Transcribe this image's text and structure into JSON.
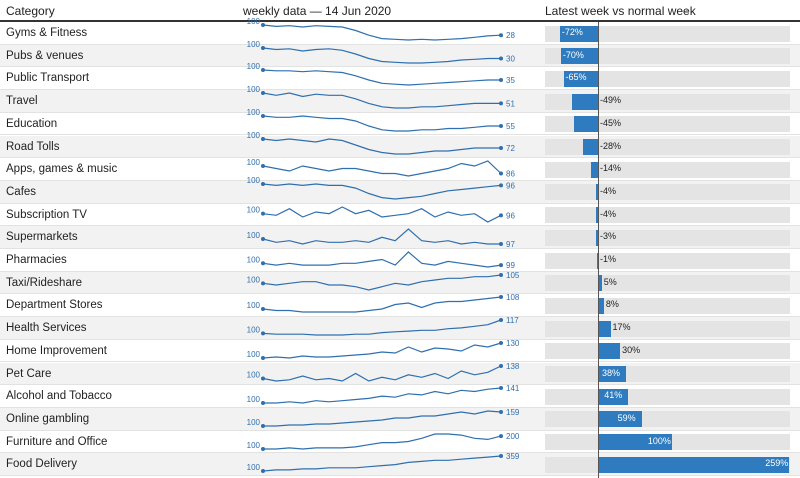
{
  "header": {
    "category": "Category",
    "spark": "weekly data — 14 Jun 2020",
    "bar": "Latest week vs normal week",
    "sort_icon": "sort-ascending-icon"
  },
  "colors": {
    "accent": "#2e7bbf",
    "spark": "#2f6fae",
    "stripe": "#f2f2f2",
    "track": "#e4e4e4"
  },
  "chart_data": {
    "type": "table",
    "columns": [
      "Category",
      "weekly data — 14 Jun 2020",
      "Latest week vs normal week"
    ],
    "xlim": [
      -100,
      260
    ],
    "rows": [
      {
        "category": "Gyms & Fitness",
        "start": 100,
        "end": 28,
        "change": -72,
        "label": "-72%",
        "trend": [
          100,
          98,
          99,
          97,
          99,
          98,
          97,
          92,
          85,
          80,
          79,
          78,
          79,
          78,
          79,
          80,
          82,
          84,
          85
        ]
      },
      {
        "category": "Pubs & venues",
        "start": 100,
        "end": 30,
        "change": -70,
        "label": "-70%",
        "trend": [
          100,
          98,
          99,
          96,
          98,
          99,
          97,
          92,
          86,
          82,
          81,
          80,
          80,
          81,
          82,
          84,
          85,
          86,
          86
        ]
      },
      {
        "category": "Public Transport",
        "start": 100,
        "end": 35,
        "change": -65,
        "label": "-65%",
        "trend": [
          100,
          99,
          99,
          98,
          99,
          98,
          97,
          93,
          88,
          84,
          83,
          82,
          83,
          84,
          85,
          86,
          87,
          88,
          88
        ]
      },
      {
        "category": "Travel",
        "start": 100,
        "end": 51,
        "change": -49,
        "label": "-49%",
        "trend": [
          100,
          98,
          100,
          97,
          99,
          98,
          98,
          95,
          91,
          88,
          87,
          87,
          88,
          88,
          89,
          90,
          91,
          91,
          91
        ]
      },
      {
        "category": "Education",
        "start": 100,
        "end": 55,
        "change": -45,
        "label": "-45%",
        "trend": [
          100,
          99,
          99,
          100,
          99,
          98,
          98,
          96,
          92,
          89,
          88,
          88,
          89,
          89,
          90,
          90,
          91,
          92,
          92
        ]
      },
      {
        "category": "Road Tolls",
        "start": 100,
        "end": 72,
        "change": -28,
        "label": "-28%",
        "trend": [
          100,
          99,
          100,
          99,
          98,
          100,
          99,
          96,
          93,
          91,
          90,
          90,
          91,
          92,
          92,
          93,
          94,
          94,
          94
        ]
      },
      {
        "category": "Apps, games & music",
        "start": 100,
        "end": 86,
        "change": -14,
        "label": "-14%",
        "trend": [
          100,
          99,
          98,
          100,
          99,
          98,
          99,
          99,
          98,
          97,
          97,
          96,
          97,
          98,
          99,
          101,
          100,
          102,
          97
        ]
      },
      {
        "category": "Cafes",
        "start": 100,
        "end": 96,
        "change": -4,
        "label": "-4%",
        "trend": [
          100,
          99,
          100,
          99,
          100,
          99,
          99,
          97,
          93,
          90,
          89,
          90,
          91,
          93,
          95,
          96,
          97,
          98,
          99
        ]
      },
      {
        "category": "Subscription TV",
        "start": 100,
        "end": 96,
        "change": -4,
        "label": "-4%",
        "trend": [
          100,
          99,
          103,
          98,
          101,
          100,
          104,
          100,
          102,
          98,
          99,
          100,
          103,
          98,
          101,
          99,
          100,
          95,
          99
        ]
      },
      {
        "category": "Supermarkets",
        "start": 100,
        "end": 97,
        "change": -3,
        "label": "-3%",
        "trend": [
          100,
          98,
          99,
          97,
          99,
          98,
          98,
          99,
          98,
          101,
          99,
          106,
          99,
          98,
          99,
          97,
          98,
          97,
          97
        ]
      },
      {
        "category": "Pharmacies",
        "start": 100,
        "end": 99,
        "change": -1,
        "label": "-1%",
        "trend": [
          100,
          99,
          100,
          99,
          99,
          99,
          100,
          100,
          101,
          102,
          99,
          106,
          100,
          99,
          101,
          100,
          99,
          98,
          99
        ]
      },
      {
        "category": "Taxi/Rideshare",
        "start": 100,
        "end": 105,
        "change": 5,
        "label": "5%",
        "trend": [
          100,
          99,
          100,
          101,
          101,
          99,
          99,
          98,
          96,
          98,
          100,
          99,
          101,
          102,
          103,
          103,
          104,
          104,
          105
        ]
      },
      {
        "category": "Department Stores",
        "start": 100,
        "end": 108,
        "change": 8,
        "label": "8%",
        "trend": [
          100,
          99,
          99,
          98,
          98,
          98,
          98,
          98,
          99,
          100,
          103,
          104,
          101,
          104,
          105,
          105,
          106,
          107,
          108
        ]
      },
      {
        "category": "Health Services",
        "start": 100,
        "end": 117,
        "change": 17,
        "label": "17%",
        "trend": [
          100,
          99,
          99,
          99,
          98,
          98,
          98,
          99,
          99,
          101,
          102,
          103,
          104,
          104,
          106,
          107,
          109,
          111,
          117
        ]
      },
      {
        "category": "Home Improvement",
        "start": 100,
        "end": 130,
        "change": 30,
        "label": "30%",
        "trend": [
          100,
          101,
          100,
          102,
          101,
          101,
          102,
          103,
          104,
          106,
          105,
          111,
          106,
          110,
          109,
          107,
          113,
          111,
          115
        ]
      },
      {
        "category": "Pet Care",
        "start": 100,
        "end": 138,
        "change": 38,
        "label": "38%",
        "trend": [
          100,
          98,
          99,
          102,
          99,
          100,
          98,
          104,
          98,
          101,
          99,
          103,
          101,
          104,
          100,
          106,
          103,
          105,
          110
        ]
      },
      {
        "category": "Alcohol and Tobacco",
        "start": 100,
        "end": 141,
        "change": 41,
        "label": "41%",
        "trend": [
          100,
          100,
          101,
          100,
          102,
          101,
          102,
          103,
          104,
          106,
          105,
          108,
          107,
          110,
          108,
          111,
          110,
          112,
          113
        ]
      },
      {
        "category": "Online gambling",
        "start": 100,
        "end": 159,
        "change": 59,
        "label": "59%",
        "trend": [
          100,
          100,
          101,
          101,
          102,
          102,
          103,
          104,
          105,
          106,
          108,
          108,
          110,
          110,
          112,
          114,
          112,
          115,
          114
        ]
      },
      {
        "category": "Furniture and Office",
        "start": 100,
        "end": 200,
        "change": 100,
        "label": "100%",
        "trend": [
          100,
          100,
          101,
          100,
          101,
          101,
          101,
          102,
          104,
          106,
          106,
          107,
          110,
          114,
          114,
          113,
          110,
          109,
          112
        ]
      },
      {
        "category": "Food Delivery",
        "start": 100,
        "end": 359,
        "change": 259,
        "label": "259%",
        "trend": [
          100,
          101,
          101,
          102,
          102,
          103,
          103,
          103,
          104,
          105,
          106,
          108,
          109,
          110,
          110,
          111,
          112,
          113,
          114
        ]
      }
    ]
  }
}
